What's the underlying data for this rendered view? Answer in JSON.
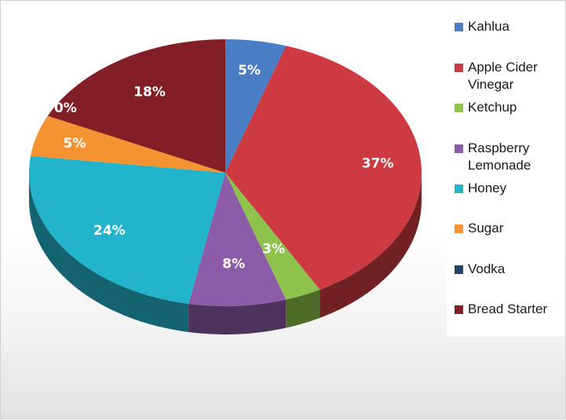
{
  "chart_data": {
    "type": "pie",
    "title": "",
    "legend_position": "right",
    "slices": [
      {
        "label": "Kahlua",
        "value": 5,
        "display": "5%",
        "color": "#4a7ec4"
      },
      {
        "label": "Apple Cider Vinegar",
        "value": 37,
        "display": "37%",
        "color": "#cd3a42"
      },
      {
        "label": "Ketchup",
        "value": 3,
        "display": "3%",
        "color": "#8ec24c"
      },
      {
        "label": "Raspberry Lemonade",
        "value": 8,
        "display": "8%",
        "color": "#8c5ca8"
      },
      {
        "label": "Honey",
        "value": 24,
        "display": "24%",
        "color": "#22b4cc"
      },
      {
        "label": "Sugar",
        "value": 5,
        "display": "5%",
        "color": "#f59231"
      },
      {
        "label": "Vodka",
        "value": 0,
        "display": "0%",
        "color": "#254268"
      },
      {
        "label": "Bread Starter",
        "value": 18,
        "display": "18%",
        "color": "#821e26"
      }
    ]
  }
}
